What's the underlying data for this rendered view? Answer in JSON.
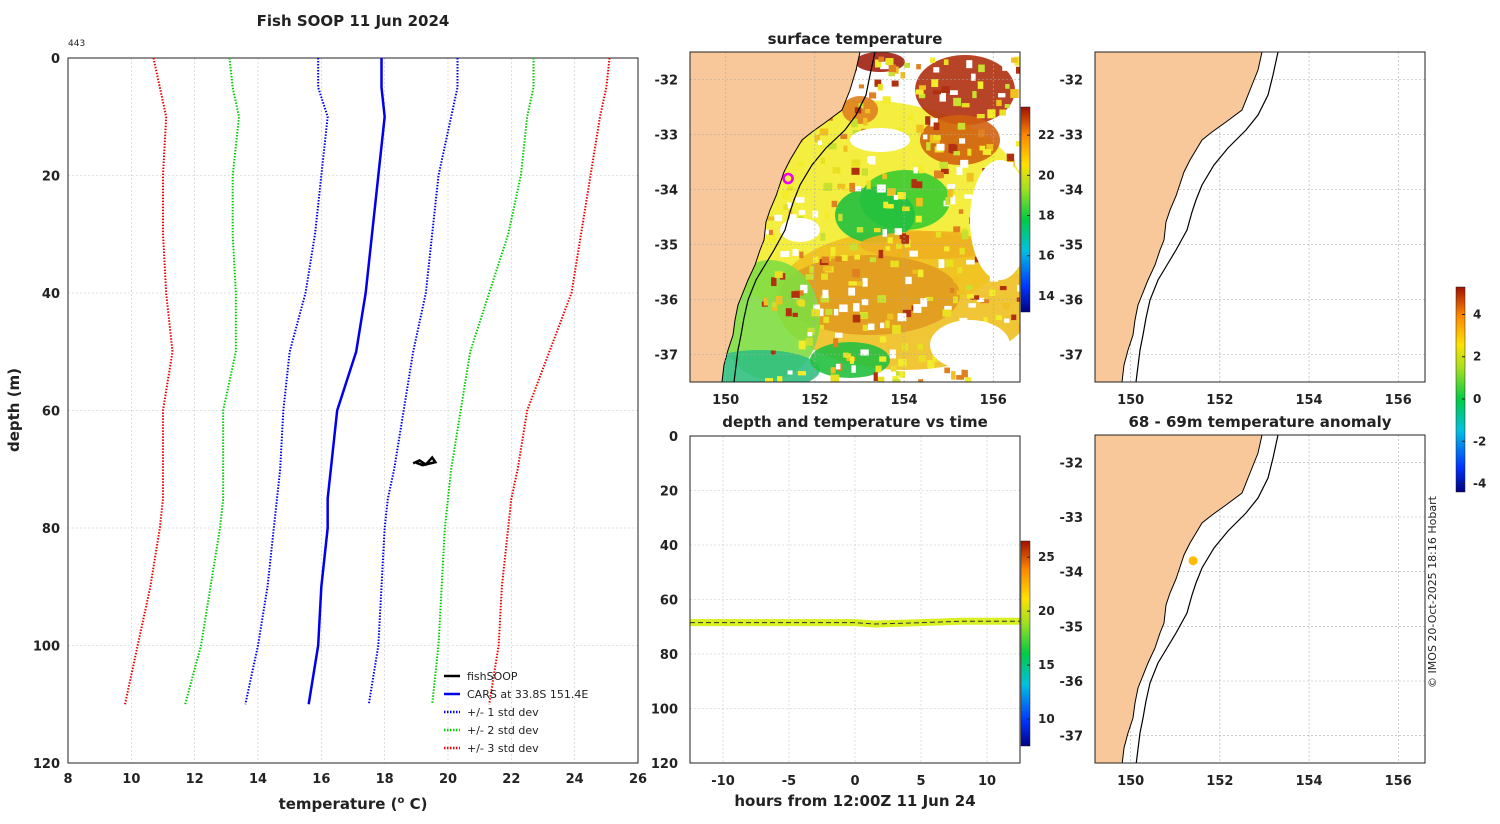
{
  "colors": {
    "land": "#f8c89a",
    "cars": "#0000ee",
    "std1": "#0000ee",
    "std2": "#00cc00",
    "std3": "#ee0000",
    "fish": "#000000",
    "grid": "#c8c8c8",
    "track": "#d8f020",
    "ship": "#ee00ee",
    "anom_dot": "#ffbb00"
  },
  "chart_data": [
    {
      "id": "profile",
      "type": "line",
      "title": "Fish SOOP 11 Jun 2024",
      "corner_label": "443",
      "xlabel": "temperature (",
      "xlabel_sup": "o",
      "xlabel_suffix": " C)",
      "ylabel": "depth (m)",
      "xlim": [
        8,
        26
      ],
      "ylim": [
        0,
        120
      ],
      "xticks": [
        "8",
        "10",
        "12",
        "14",
        "16",
        "18",
        "20",
        "22",
        "24",
        "26"
      ],
      "yticks": [
        "0",
        "20",
        "40",
        "60",
        "80",
        "100",
        "120"
      ],
      "depths": [
        0,
        5,
        10,
        20,
        30,
        40,
        50,
        60,
        70,
        75,
        80,
        90,
        100,
        110
      ],
      "series": [
        {
          "name": "CARS at 33.8S 151.4E",
          "style": "solid",
          "color": "cars",
          "values": [
            17.9,
            17.9,
            18.0,
            17.8,
            17.6,
            17.4,
            17.1,
            16.5,
            16.3,
            16.2,
            16.2,
            16.0,
            15.9,
            15.6
          ]
        },
        {
          "name": "std1_lo",
          "style": "dotted",
          "color": "std1",
          "values": [
            15.9,
            15.9,
            16.2,
            16.0,
            15.8,
            15.5,
            15.0,
            14.8,
            14.7,
            14.6,
            14.5,
            14.3,
            14.0,
            13.6
          ]
        },
        {
          "name": "std1_hi",
          "style": "dotted",
          "color": "std1",
          "values": [
            20.3,
            20.3,
            20.1,
            19.7,
            19.5,
            19.3,
            18.9,
            18.6,
            18.3,
            18.1,
            18.0,
            17.9,
            17.8,
            17.5
          ]
        },
        {
          "name": "std2_lo",
          "style": "dotted",
          "color": "std2",
          "values": [
            13.1,
            13.2,
            13.4,
            13.2,
            13.2,
            13.3,
            13.3,
            12.9,
            12.9,
            12.9,
            12.8,
            12.5,
            12.2,
            11.7
          ]
        },
        {
          "name": "std2_hi",
          "style": "dotted",
          "color": "std2",
          "values": [
            22.7,
            22.7,
            22.5,
            22.3,
            21.9,
            21.3,
            20.7,
            20.4,
            20.1,
            20.0,
            19.9,
            19.8,
            19.7,
            19.5
          ]
        },
        {
          "name": "std3_lo",
          "style": "dotted",
          "color": "std3",
          "values": [
            10.7,
            10.9,
            11.1,
            11.0,
            11.0,
            11.1,
            11.3,
            11.0,
            11.0,
            11.0,
            10.9,
            10.6,
            10.2,
            9.8
          ]
        },
        {
          "name": "std3_hi",
          "style": "dotted",
          "color": "std3",
          "values": [
            25.1,
            25.0,
            24.8,
            24.5,
            24.2,
            23.9,
            23.2,
            22.5,
            22.2,
            22.0,
            21.9,
            21.7,
            21.6,
            21.3
          ]
        },
        {
          "name": "fishSOOP",
          "style": "solid",
          "color": "fish",
          "points": [
            [
              18.9,
              69
            ],
            [
              19.1,
              68.5
            ],
            [
              19.3,
              69.2
            ],
            [
              19.5,
              68
            ],
            [
              19.6,
              68.8
            ],
            [
              19.2,
              69.3
            ],
            [
              19.0,
              68.9
            ]
          ]
        }
      ],
      "legend": {
        "placement": "bottom-right",
        "items": [
          {
            "label": "fishSOOP",
            "color": "fish",
            "style": "solid"
          },
          {
            "label": "CARS at 33.8S 151.4E",
            "color": "cars",
            "style": "solid"
          },
          {
            "label": "+/- 1 std dev",
            "color": "std1",
            "style": "dotted"
          },
          {
            "label": "+/- 2 std dev",
            "color": "std2",
            "style": "dotted"
          },
          {
            "label": "+/- 3 std dev",
            "color": "std3",
            "style": "dotted"
          }
        ]
      }
    },
    {
      "id": "sst_map",
      "type": "heatmap",
      "title": "surface temperature",
      "xlim": [
        149.2,
        156.6
      ],
      "ylim": [
        -37.5,
        -31.5
      ],
      "xticks": [
        "150",
        "152",
        "154",
        "156"
      ],
      "yticks": [
        "-32",
        "-33",
        "-34",
        "-35",
        "-36",
        "-37"
      ],
      "ship_position": {
        "lon": 151.4,
        "lat": -33.8
      },
      "colorbar_ticks": [
        "14",
        "16",
        "18",
        "20",
        "22"
      ],
      "colorbar_range": [
        13.2,
        23.4
      ]
    },
    {
      "id": "depth_time",
      "type": "scatter",
      "title": "depth and temperature vs time",
      "xlabel": "hours from 12:00Z 11 Jun 24",
      "xlim": [
        -12.5,
        12.5
      ],
      "ylim": [
        0,
        120
      ],
      "xticks": [
        "-10",
        "-5",
        "0",
        "5",
        "10"
      ],
      "yticks": [
        "0",
        "20",
        "40",
        "60",
        "80",
        "100",
        "120"
      ],
      "track": {
        "x": [
          -12.5,
          -6,
          0,
          1.5,
          5,
          8,
          12.5
        ],
        "depth": [
          68.5,
          68.5,
          68.5,
          69,
          68.5,
          68,
          68
        ]
      },
      "colorbar_ticks": [
        "10",
        "15",
        "20",
        "25"
      ],
      "colorbar_range": [
        7.5,
        26.5
      ]
    },
    {
      "id": "top_right_map",
      "type": "heatmap",
      "title": "",
      "xlim": [
        149.2,
        156.6
      ],
      "ylim": [
        -37.5,
        -31.5
      ],
      "xticks": [
        "150",
        "152",
        "154",
        "156"
      ],
      "yticks": [
        "-32",
        "-33",
        "-34",
        "-35",
        "-36",
        "-37"
      ]
    },
    {
      "id": "anomaly_map",
      "type": "heatmap",
      "title": "68 - 69m temperature anomaly",
      "xlim": [
        149.2,
        156.6
      ],
      "ylim": [
        -37.5,
        -31.5
      ],
      "xticks": [
        "150",
        "152",
        "154",
        "156"
      ],
      "yticks": [
        "-32",
        "-33",
        "-34",
        "-35",
        "-36",
        "-37"
      ],
      "point": {
        "lon": 151.4,
        "lat": -33.8,
        "anomaly": 2.0
      },
      "colorbar_ticks": [
        "-4",
        "-2",
        "0",
        "2",
        "4"
      ],
      "colorbar_range": [
        -4.4,
        5.3
      ]
    }
  ],
  "footer": {
    "credit": "© IMOS 20-Oct-2025 18:16 Hobart"
  }
}
